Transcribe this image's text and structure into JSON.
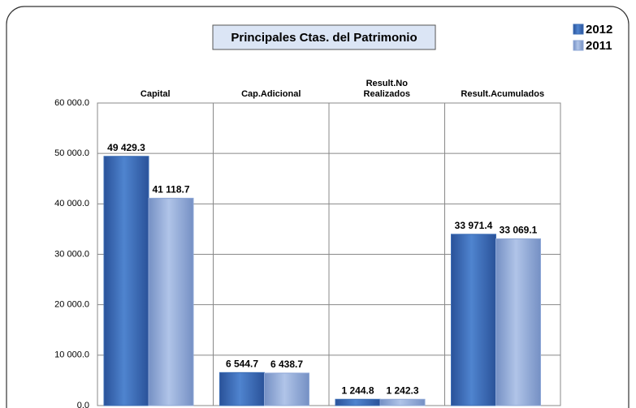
{
  "chart_data": {
    "type": "bar",
    "title": "Principales Ctas. del Patrimonio",
    "categories": [
      "Capital",
      "Cap.Adicional",
      "Result.No\nRealizados",
      "Result.Acumulados"
    ],
    "series": [
      {
        "name": "2012",
        "color": "#3b6db5",
        "values": [
          49429.3,
          6544.7,
          1244.8,
          33971.4
        ],
        "value_labels": [
          "49 429.3",
          "6 544.7",
          "1 244.8",
          "33 971.4"
        ]
      },
      {
        "name": "2011",
        "color": "#8ea7d6",
        "values": [
          41118.7,
          6438.7,
          1242.3,
          33069.1
        ],
        "value_labels": [
          "41 118.7",
          "6 438.7",
          "1 242.3",
          "33 069.1"
        ]
      }
    ],
    "ylim": [
      0,
      60000
    ],
    "yticks": [
      {
        "value": 0,
        "label": "0.0"
      },
      {
        "value": 10000,
        "label": "10 000.0"
      },
      {
        "value": 20000,
        "label": "20 000.0"
      },
      {
        "value": 30000,
        "label": "30 000.0"
      },
      {
        "value": 40000,
        "label": "40 000.0"
      },
      {
        "value": 50000,
        "label": "50 000.0"
      },
      {
        "value": 60000,
        "label": "60 000.0"
      }
    ],
    "grid": true,
    "legend": "top-right"
  }
}
